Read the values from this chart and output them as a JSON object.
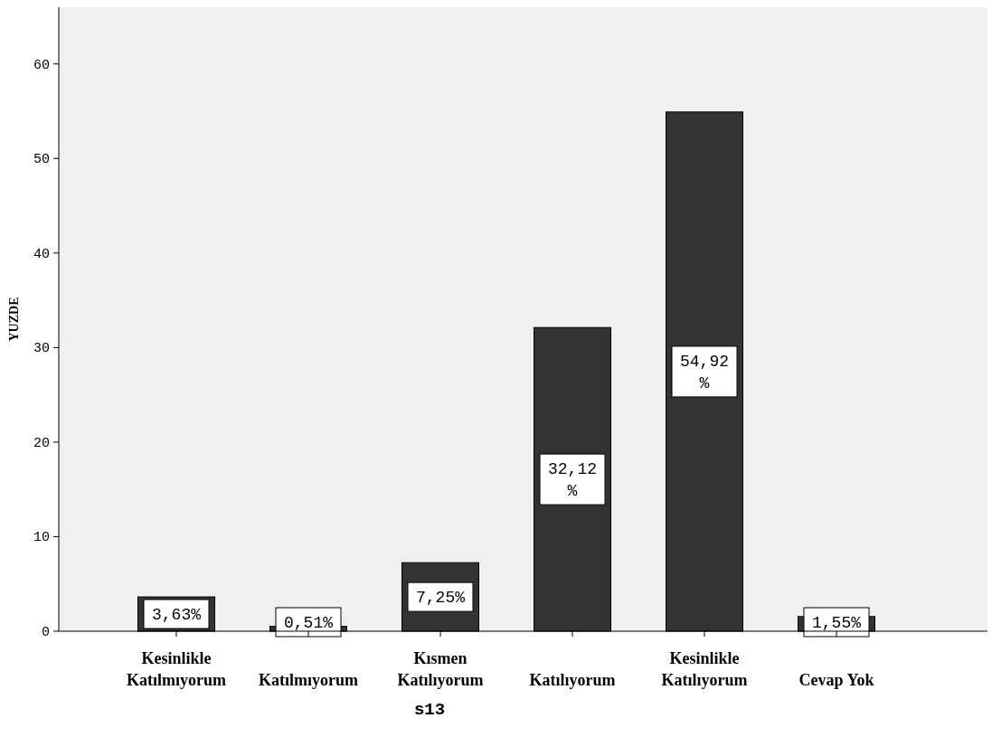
{
  "chart_data": {
    "type": "bar",
    "xlabel": "s13",
    "ylabel": "YUZDE",
    "categories": [
      "Kesinlikle Katılmıyorum",
      "Katılmıyorum",
      "Kısmen Katılıyorum",
      "Katılıyorum",
      "Kesinlikle Katılıyorum",
      "Cevap Yok"
    ],
    "values": [
      3.63,
      0.51,
      7.25,
      32.12,
      54.92,
      1.55
    ],
    "value_labels": [
      "3,63%",
      "0,51%",
      "7,25%",
      "32,12 %",
      "54,92 %",
      "1,55%"
    ],
    "color": "#333333",
    "ylim": [
      0,
      66
    ],
    "yticks": [
      0,
      10,
      20,
      30,
      40,
      50,
      60
    ],
    "grid": false
  }
}
